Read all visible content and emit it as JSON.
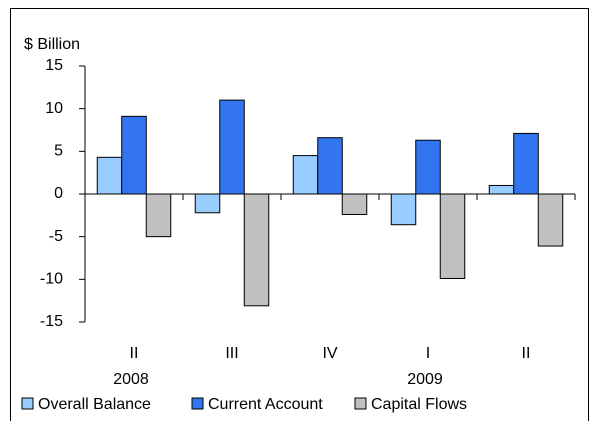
{
  "chart_data": {
    "type": "bar",
    "y_label": "$ Billion",
    "categories": [
      "II",
      "III",
      "IV",
      "I",
      "II"
    ],
    "category_years": [
      "2008",
      null,
      null,
      "2009",
      null
    ],
    "series": [
      {
        "name": "Overall Balance",
        "color": "#99ccff",
        "values": [
          4.3,
          -2.2,
          4.5,
          -3.6,
          1.0
        ]
      },
      {
        "name": "Current Account",
        "color": "#3375f0",
        "values": [
          9.1,
          11.0,
          6.6,
          6.3,
          7.1
        ]
      },
      {
        "name": "Capital Flows",
        "color": "#c0c0c0",
        "values": [
          -5.0,
          -13.1,
          -2.4,
          -9.9,
          -6.1
        ]
      }
    ],
    "ylim": [
      -15,
      15
    ],
    "yticks": [
      -15,
      -10,
      -5,
      0,
      5,
      10,
      15
    ],
    "legend": "bottom"
  }
}
